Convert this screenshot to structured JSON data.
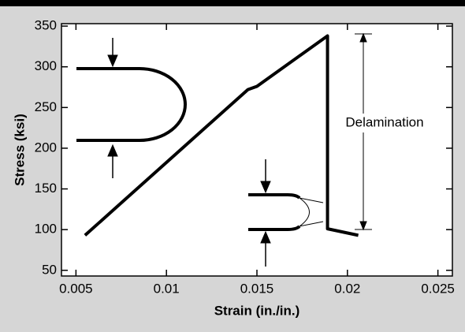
{
  "chart_data": {
    "type": "line",
    "x_label": "Strain (in./in.)",
    "y_label": "Stress (ksi)",
    "annotation": "Delamination",
    "x": [
      0.0055,
      0.0145,
      0.015,
      0.0189,
      0.0189,
      0.0206
    ],
    "values": [
      93,
      272,
      276,
      338,
      101,
      93
    ],
    "color": "#000000",
    "xlim": [
      0.0042,
      0.0258
    ],
    "ylim": [
      43,
      353
    ],
    "xticks": [
      0.005,
      0.01,
      0.015,
      0.02,
      0.025
    ],
    "yticks": [
      50,
      100,
      150,
      200,
      250,
      300,
      350
    ]
  }
}
